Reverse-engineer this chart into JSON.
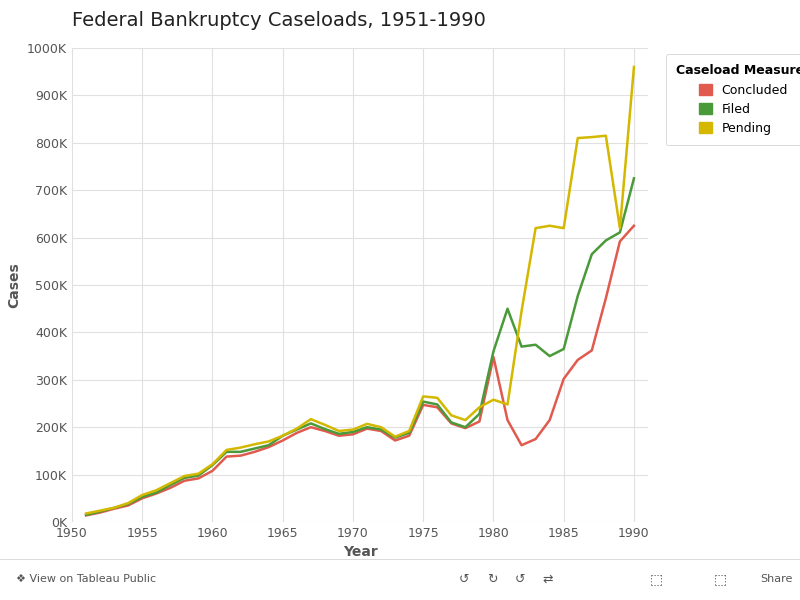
{
  "title": "Federal Bankruptcy Caseloads, 1951-1990",
  "xlabel": "Year",
  "ylabel": "Cases",
  "legend_title": "Caseload Measures",
  "colors": {
    "Concluded": "#e05a4e",
    "Filed": "#4a9a3a",
    "Pending": "#d4b800"
  },
  "years": [
    1951,
    1952,
    1953,
    1954,
    1955,
    1956,
    1957,
    1958,
    1959,
    1960,
    1961,
    1962,
    1963,
    1964,
    1965,
    1966,
    1967,
    1968,
    1969,
    1970,
    1971,
    1972,
    1973,
    1974,
    1975,
    1976,
    1977,
    1978,
    1979,
    1980,
    1981,
    1982,
    1983,
    1984,
    1985,
    1986,
    1987,
    1988,
    1989,
    1990
  ],
  "filed": [
    15000,
    22000,
    30000,
    38000,
    53000,
    62000,
    78000,
    93000,
    98000,
    120000,
    148000,
    148000,
    155000,
    162000,
    182000,
    195000,
    208000,
    196000,
    186000,
    190000,
    200000,
    195000,
    178000,
    188000,
    254000,
    248000,
    210000,
    200000,
    228000,
    360000,
    450000,
    370000,
    374000,
    350000,
    365000,
    477000,
    565000,
    594000,
    611000,
    725000
  ],
  "concluded": [
    14000,
    20000,
    28000,
    35000,
    50000,
    60000,
    72000,
    87000,
    92000,
    108000,
    138000,
    140000,
    148000,
    158000,
    172000,
    188000,
    200000,
    192000,
    182000,
    185000,
    197000,
    192000,
    172000,
    182000,
    247000,
    242000,
    208000,
    198000,
    212000,
    348000,
    215000,
    162000,
    175000,
    215000,
    302000,
    342000,
    362000,
    472000,
    592000,
    625000
  ],
  "pending": [
    18000,
    24000,
    30000,
    40000,
    57000,
    67000,
    82000,
    97000,
    102000,
    122000,
    152000,
    157000,
    164000,
    170000,
    182000,
    197000,
    217000,
    205000,
    192000,
    195000,
    207000,
    200000,
    180000,
    192000,
    265000,
    262000,
    225000,
    215000,
    242000,
    258000,
    248000,
    445000,
    620000,
    625000,
    620000,
    810000,
    812000,
    815000,
    620000,
    960000
  ],
  "xlim": [
    1950,
    1991
  ],
  "ylim": [
    0,
    1000000
  ],
  "yticks": [
    0,
    100000,
    200000,
    300000,
    400000,
    500000,
    600000,
    700000,
    800000,
    900000,
    1000000
  ],
  "xticks": [
    1950,
    1955,
    1960,
    1965,
    1970,
    1975,
    1980,
    1985,
    1990
  ],
  "background_color": "#ffffff",
  "plot_bg_color": "#ffffff",
  "grid_color": "#e0e0e0",
  "linewidth": 1.8,
  "title_fontsize": 14,
  "axis_label_fontsize": 10,
  "tick_fontsize": 9,
  "legend_fontsize": 9,
  "footer_color": "#f0f0f0",
  "footer_text_color": "#555555"
}
